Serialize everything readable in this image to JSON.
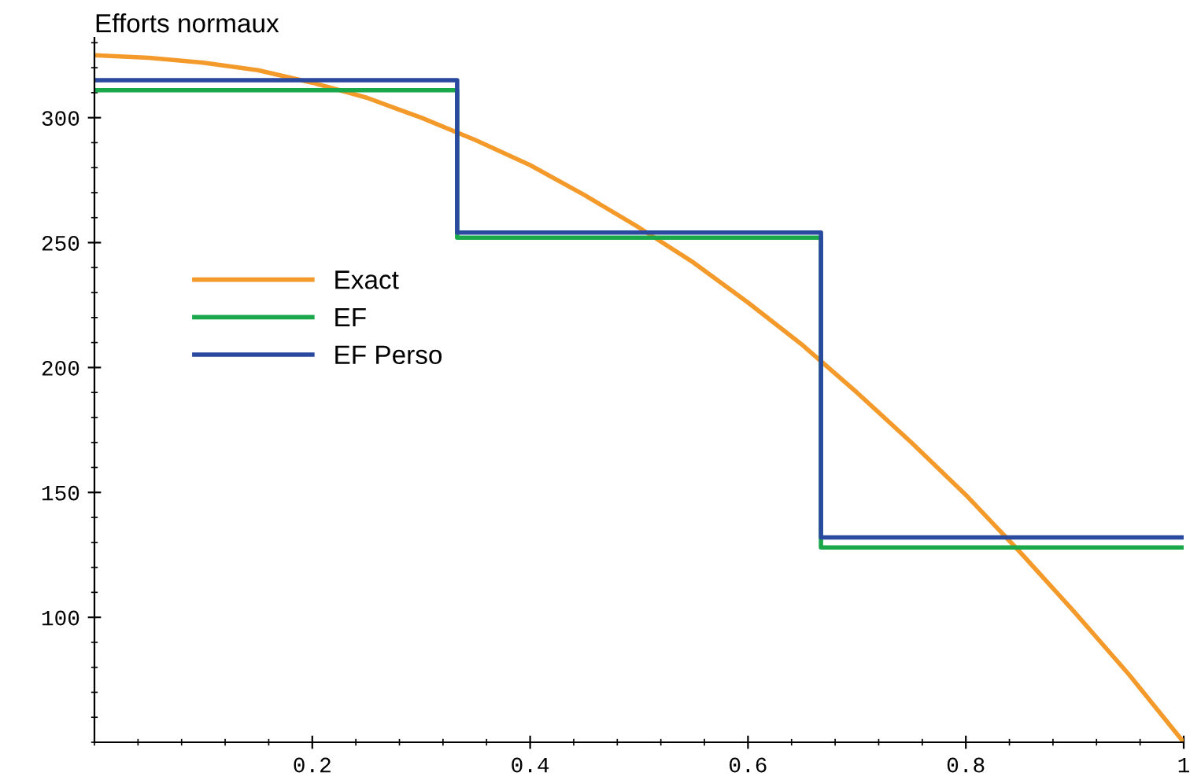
{
  "chart_data": {
    "type": "line",
    "ylabel": "Efforts normaux",
    "xlim": [
      0,
      1
    ],
    "ylim": [
      50,
      332
    ],
    "xticks": [
      0.2,
      0.4,
      0.6,
      0.8,
      1
    ],
    "yticks": [
      100,
      150,
      200,
      250,
      300
    ],
    "grid": false,
    "legend": "left",
    "marker": "none",
    "line_style": "solid",
    "series": [
      {
        "name": "Exact",
        "color": "#f39a2b",
        "x": [
          0,
          0.05,
          0.1,
          0.15,
          0.2,
          0.25,
          0.3,
          0.35,
          0.4,
          0.45,
          0.5,
          0.55,
          0.6,
          0.65,
          0.7,
          0.75,
          0.8,
          0.85,
          0.9,
          0.95,
          1
        ],
        "values": [
          325,
          324,
          322,
          319,
          314,
          308,
          300,
          291,
          281,
          269,
          256,
          242,
          226,
          209,
          190,
          170,
          149,
          126,
          102,
          77,
          50
        ]
      },
      {
        "name": "EF",
        "type": "step",
        "color": "#1aa84a",
        "x": [
          0,
          0.333,
          0.667,
          1
        ],
        "values": [
          311,
          252,
          128,
          128
        ]
      },
      {
        "name": "EF Perso",
        "type": "step",
        "color": "#2a4aa0",
        "x": [
          0,
          0.333,
          0.667,
          1
        ],
        "values": [
          315,
          254,
          132,
          132
        ]
      }
    ]
  }
}
